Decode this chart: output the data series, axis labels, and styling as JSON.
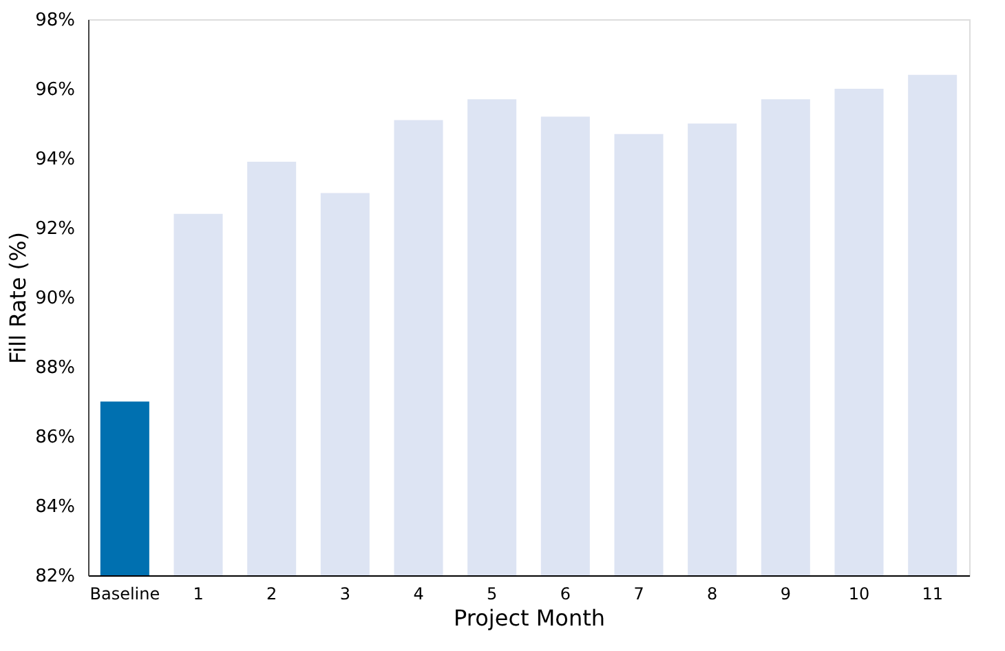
{
  "chart_data": {
    "type": "bar",
    "xlabel": "Project Month",
    "ylabel": "Fill Rate (%)",
    "categories": [
      "Baseline",
      "1",
      "2",
      "3",
      "4",
      "5",
      "6",
      "7",
      "8",
      "9",
      "10",
      "11"
    ],
    "values": [
      87.0,
      92.4,
      93.9,
      93.0,
      95.1,
      95.7,
      95.2,
      94.7,
      95.0,
      95.7,
      96.0,
      96.4
    ],
    "colors": [
      "#0070b0",
      "#dde4f3",
      "#dde4f3",
      "#dde4f3",
      "#dde4f3",
      "#dde4f3",
      "#dde4f3",
      "#dde4f3",
      "#dde4f3",
      "#dde4f3",
      "#dde4f3",
      "#dde4f3"
    ],
    "ylim": [
      82,
      98
    ],
    "yticks": [
      {
        "value": 82,
        "label": "82%"
      },
      {
        "value": 84,
        "label": "84%"
      },
      {
        "value": 86,
        "label": "86%"
      },
      {
        "value": 88,
        "label": "88%"
      },
      {
        "value": 90,
        "label": "90%"
      },
      {
        "value": 92,
        "label": "92%"
      },
      {
        "value": 94,
        "label": "94%"
      },
      {
        "value": 96,
        "label": "96%"
      },
      {
        "value": 98,
        "label": "98%"
      }
    ],
    "grid": false
  }
}
